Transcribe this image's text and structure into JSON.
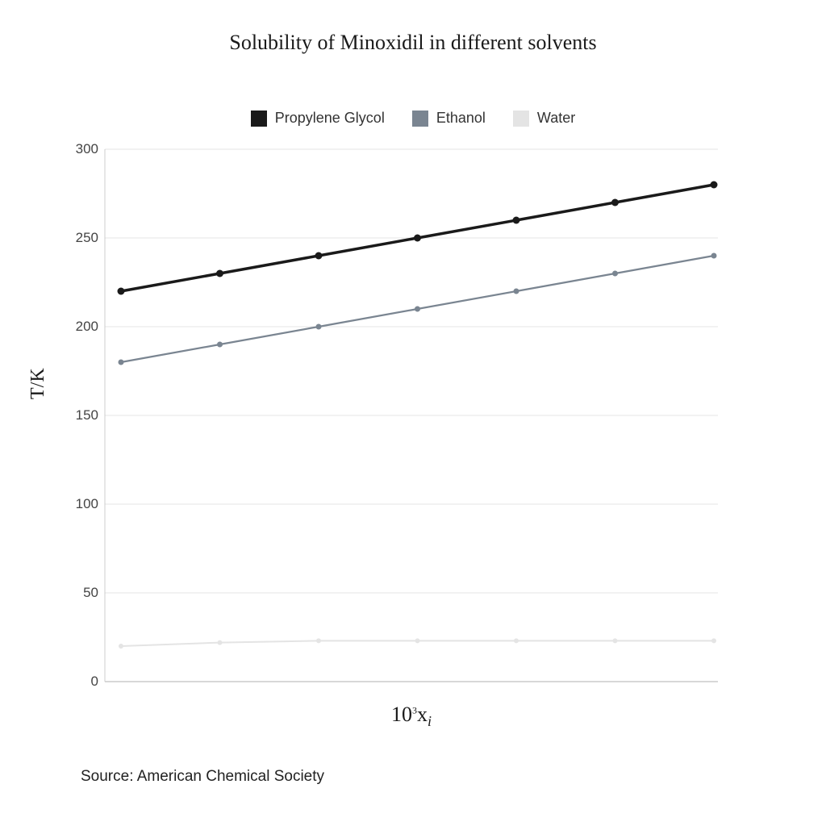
{
  "chart": {
    "type": "line",
    "title": "Solubility of Minoxidil in different solvents",
    "title_fontsize": 26,
    "background_color": "#ffffff",
    "grid_color": "#e5e5e5",
    "axis_color": "#cccccc",
    "tick_font_color": "#444444",
    "tick_fontsize": 17,
    "y_axis": {
      "label": "T/K",
      "label_fontsize": 24,
      "min": 0,
      "max": 300,
      "ticks": [
        0,
        50,
        100,
        150,
        200,
        250,
        300
      ]
    },
    "x_axis": {
      "label_main": "10",
      "label_sup": "3",
      "label_var": "x",
      "label_sub": "i",
      "label_fontsize": 26,
      "point_count": 7
    },
    "legend": {
      "position": "top",
      "fontsize": 18,
      "items": [
        {
          "name": "Propylene Glycol",
          "color": "#1a1a1a"
        },
        {
          "name": "Ethanol",
          "color": "#7a8591"
        },
        {
          "name": "Water",
          "color": "#e4e4e4"
        }
      ]
    },
    "series": [
      {
        "name": "Propylene Glycol",
        "color": "#1a1a1a",
        "line_width": 3.5,
        "marker": "circle",
        "marker_size": 4.5,
        "values": [
          220,
          230,
          240,
          250,
          260,
          270,
          280
        ]
      },
      {
        "name": "Ethanol",
        "color": "#7a8591",
        "line_width": 2.2,
        "marker": "circle",
        "marker_size": 3.5,
        "values": [
          180,
          190,
          200,
          210,
          220,
          230,
          240
        ]
      },
      {
        "name": "Water",
        "color": "#e4e4e4",
        "line_width": 2.0,
        "marker": "circle",
        "marker_size": 3.0,
        "values": [
          20,
          22,
          23,
          23,
          23,
          23,
          23
        ]
      }
    ],
    "source_label": "Source: American Chemical Society",
    "source_fontsize": 19
  }
}
